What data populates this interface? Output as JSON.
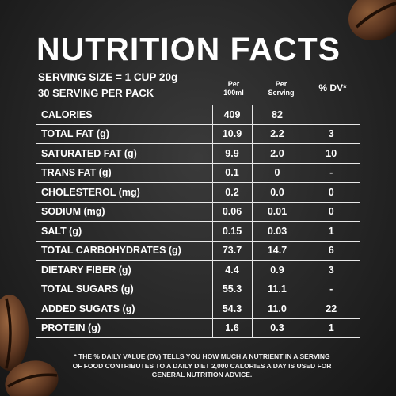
{
  "title": "NUTRITION FACTS",
  "serving_size": "SERVING SIZE = 1 CUP 20g",
  "servings_per_pack": "30 SERVING PER PACK",
  "columns": {
    "per_100ml": [
      "Per",
      "100ml"
    ],
    "per_serving": [
      "Per",
      "Serving"
    ],
    "dv": "% DV*"
  },
  "rows": [
    {
      "name": "CALORIES",
      "per_100ml": "409",
      "per_serving": "82",
      "dv": ""
    },
    {
      "name": "TOTAL FAT (g)",
      "per_100ml": "10.9",
      "per_serving": "2.2",
      "dv": "3"
    },
    {
      "name": "SATURATED FAT (g)",
      "per_100ml": "9.9",
      "per_serving": "2.0",
      "dv": "10"
    },
    {
      "name": "TRANS FAT (g)",
      "per_100ml": "0.1",
      "per_serving": "0",
      "dv": "-"
    },
    {
      "name": "CHOLESTEROL (mg)",
      "per_100ml": "0.2",
      "per_serving": "0.0",
      "dv": "0"
    },
    {
      "name": "SODIUM (mg)",
      "per_100ml": "0.06",
      "per_serving": "0.01",
      "dv": "0"
    },
    {
      "name": "SALT (g)",
      "per_100ml": "0.15",
      "per_serving": "0.03",
      "dv": "1"
    },
    {
      "name": "TOTAL CARBOHYDRATES (g)",
      "per_100ml": "73.7",
      "per_serving": "14.7",
      "dv": "6"
    },
    {
      "name": "DIETARY FIBER (g)",
      "per_100ml": "4.4",
      "per_serving": "0.9",
      "dv": "3"
    },
    {
      "name": "TOTAL SUGARS (g)",
      "per_100ml": "55.3",
      "per_serving": "11.1",
      "dv": "-"
    },
    {
      "name": "ADDED SUGATS (g)",
      "per_100ml": "54.3",
      "per_serving": "11.0",
      "dv": "22"
    },
    {
      "name": "PROTEIN (g)",
      "per_100ml": "1.6",
      "per_serving": "0.3",
      "dv": "1"
    }
  ],
  "footnote": "* THE % DAILY VALUE (DV) TELLS YOU HOW MUCH A NUTRIENT IN A SERVING OF FOOD CONTRIBUTES TO A DAILY DIET 2,000 CALORIES A DAY IS USED FOR GENERAL NUTRITION ADVICE.",
  "colors": {
    "background": "#2b2b2b",
    "text": "#ffffff",
    "bean": "#5a3520"
  },
  "decorations": [
    "coffee-bean-top-right",
    "coffee-bean-left-middle",
    "coffee-bean-bottom-left"
  ]
}
